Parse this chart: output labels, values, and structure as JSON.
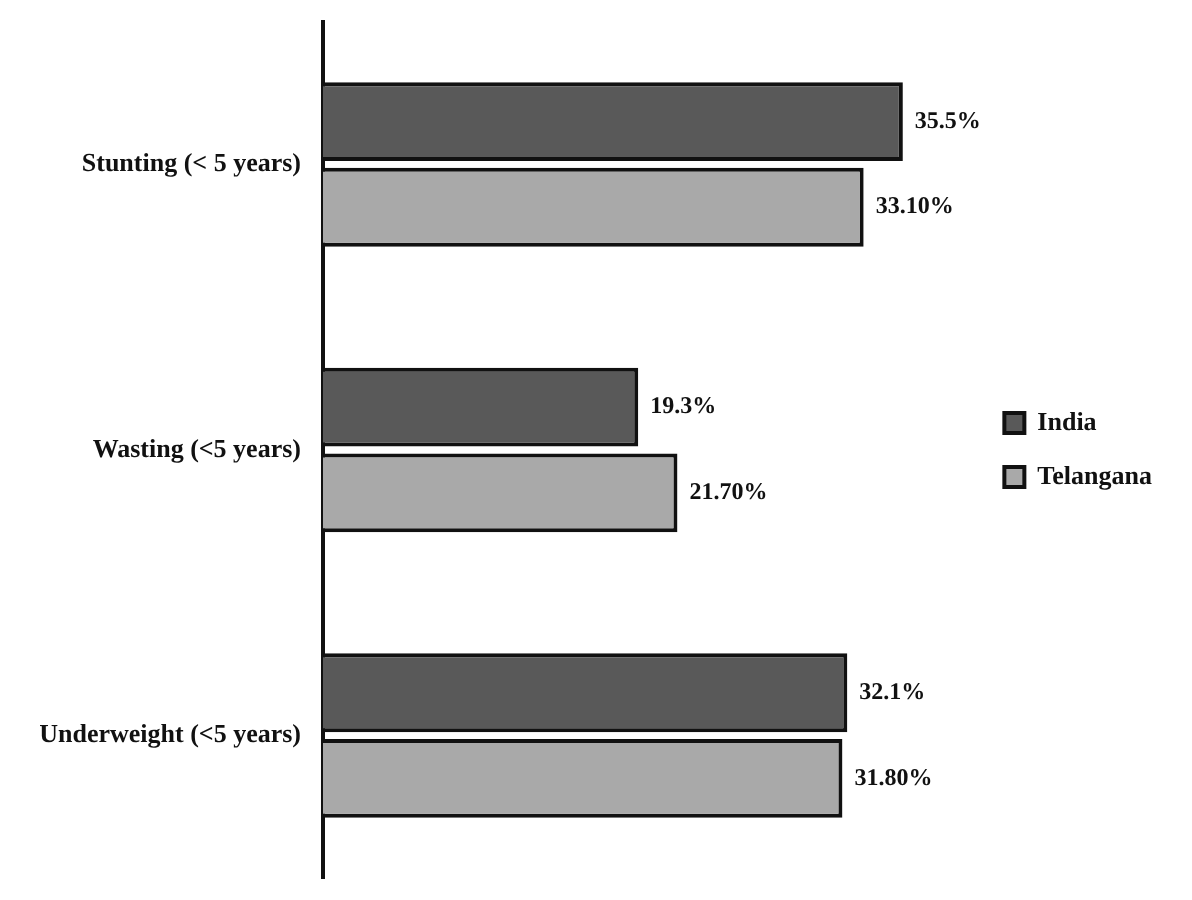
{
  "chart_data": {
    "type": "bar",
    "orientation": "horizontal",
    "categories": [
      "Stunting (< 5 years)",
      "Wasting (<5 years)",
      "Underweight (<5 years)"
    ],
    "series": [
      {
        "name": "India",
        "color": "#595959",
        "values": [
          35.5,
          19.3,
          32.1
        ],
        "value_labels": [
          "35.5%",
          "19.3%",
          "32.1%"
        ]
      },
      {
        "name": "Telangana",
        "color": "#a9a9a9",
        "values": [
          33.1,
          21.7,
          31.8
        ],
        "value_labels": [
          "33.10%",
          "21.70%",
          "31.80%"
        ]
      }
    ],
    "legend": "right"
  }
}
